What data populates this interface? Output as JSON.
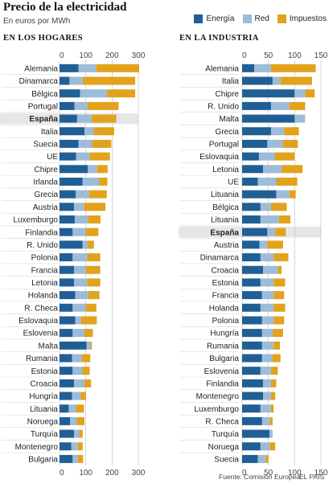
{
  "title": "Precio de la electricidad",
  "subtitle": "En euros por MWh",
  "legend": {
    "items": [
      {
        "label": "Energía",
        "color": "#1f5f95"
      },
      {
        "label": "Red",
        "color": "#9dbcd9"
      },
      {
        "label": "Impuestos",
        "color": "#e2a21c"
      }
    ]
  },
  "highlight_country": "España",
  "footer": {
    "source": "Fuente: Comisión Europea.",
    "brand": "EL PAÍS"
  },
  "chart_data": [
    {
      "type": "bar",
      "orientation": "horizontal",
      "stacked": true,
      "title": "EN LOS HOGARES",
      "xlim": [
        0,
        300
      ],
      "xticks": [
        0,
        100,
        200,
        300
      ],
      "categories": [
        "Alemania",
        "Dinamarca",
        "Bélgica",
        "Portugal",
        "España",
        "Italia",
        "Suecia",
        "UE",
        "Chipre",
        "Irlanda",
        "Grecia",
        "Austria",
        "Luxemburgo",
        "Finlandia",
        "R. Unido",
        "Polonia",
        "Francia",
        "Letonia",
        "Holanda",
        "R. Checa",
        "Eslovaquia",
        "Eslovenia",
        "Malta",
        "Rumania",
        "Estonia",
        "Croacia",
        "Hungría",
        "Lituania",
        "Noruega",
        "Turquía",
        "Montenegro",
        "Bulgaria"
      ],
      "series": [
        {
          "name": "Energía",
          "values": [
            72,
            38,
            78,
            57,
            67,
            95,
            72,
            63,
            108,
            88,
            62,
            55,
            58,
            50,
            88,
            50,
            55,
            55,
            60,
            50,
            60,
            50,
            103,
            48,
            50,
            55,
            48,
            35,
            40,
            55,
            45,
            50
          ]
        },
        {
          "name": "Red",
          "values": [
            68,
            50,
            103,
            50,
            56,
            35,
            52,
            52,
            35,
            62,
            50,
            38,
            50,
            50,
            18,
            55,
            45,
            50,
            50,
            50,
            22,
            45,
            15,
            37,
            37,
            40,
            33,
            28,
            25,
            20,
            25,
            20
          ]
        },
        {
          "name": "Impuestos",
          "values": [
            163,
            200,
            107,
            118,
            93,
            78,
            73,
            77,
            40,
            32,
            68,
            82,
            48,
            48,
            25,
            50,
            55,
            50,
            42,
            40,
            60,
            32,
            5,
            32,
            28,
            25,
            20,
            30,
            30,
            13,
            18,
            20
          ]
        }
      ]
    },
    {
      "type": "bar",
      "orientation": "horizontal",
      "stacked": true,
      "title": "EN LA INDUSTRIA",
      "xlim": [
        0,
        150
      ],
      "xticks": [
        0,
        50,
        100,
        150
      ],
      "categories": [
        "Alemania",
        "Italia",
        "Chipre",
        "R. Unido",
        "Malta",
        "Grecia",
        "Portugal",
        "Eslovaquia",
        "Letonia",
        "UE",
        "Lituania",
        "Bélgica",
        "Lituania",
        "España",
        "Austria",
        "Dinamarca",
        "Croacia",
        "Estonia",
        "Francia",
        "Holanda",
        "Polonia",
        "Hungría",
        "Rumania",
        "Bulgaria",
        "Eslovenia",
        "Finlandia",
        "Montenegro",
        "Luxemburgo",
        "R. Checa",
        "Turquía",
        "Noruega",
        "Suecia"
      ],
      "series": [
        {
          "name": "Energía",
          "values": [
            23,
            58,
            100,
            55,
            100,
            55,
            48,
            32,
            40,
            30,
            65,
            35,
            35,
            48,
            33,
            35,
            40,
            35,
            38,
            35,
            38,
            38,
            38,
            38,
            35,
            40,
            40,
            35,
            38,
            52,
            35,
            30
          ]
        },
        {
          "name": "Red",
          "values": [
            32,
            15,
            20,
            35,
            20,
            25,
            30,
            30,
            35,
            35,
            25,
            20,
            35,
            15,
            15,
            25,
            28,
            25,
            22,
            25,
            22,
            20,
            22,
            20,
            20,
            15,
            15,
            20,
            15,
            6,
            18,
            15
          ]
        },
        {
          "name": "Impuestos",
          "values": [
            85,
            60,
            18,
            30,
            0,
            28,
            28,
            38,
            40,
            40,
            12,
            30,
            22,
            20,
            30,
            28,
            7,
            22,
            20,
            22,
            20,
            20,
            12,
            15,
            13,
            10,
            8,
            5,
            5,
            0,
            10,
            5
          ]
        }
      ]
    }
  ]
}
